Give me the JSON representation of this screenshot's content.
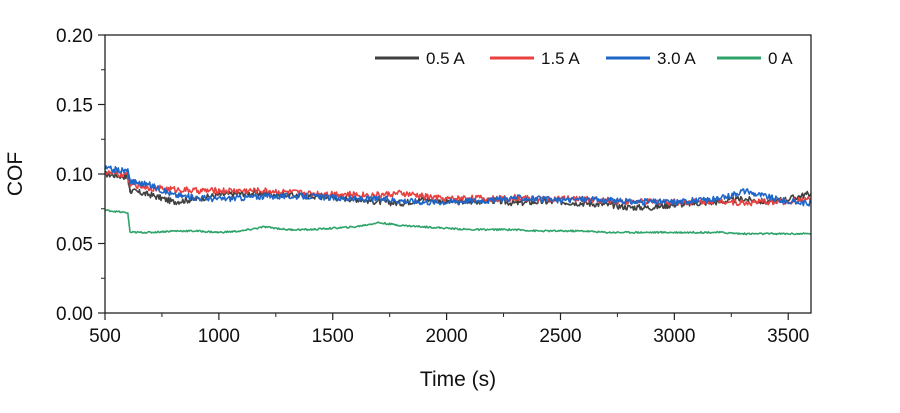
{
  "chart_data": {
    "type": "line",
    "xlabel": "Time (s)",
    "ylabel": "COF",
    "xlim": [
      500,
      3600
    ],
    "ylim": [
      0.0,
      0.2
    ],
    "x_ticks": [
      500,
      1000,
      1500,
      2000,
      2500,
      3000,
      3500
    ],
    "y_ticks": [
      0.0,
      0.05,
      0.1,
      0.15,
      0.2
    ],
    "y_tick_labels": [
      "0.00",
      "0.05",
      "0.10",
      "0.15",
      "0.20"
    ],
    "grid": false,
    "legend_position": "top-right",
    "series": [
      {
        "name": "0.5 A",
        "color": "#404040",
        "x": [
          500,
          600,
          610,
          700,
          800,
          900,
          1000,
          1100,
          1200,
          1300,
          1400,
          1500,
          1600,
          1700,
          1800,
          1900,
          2000,
          2100,
          2200,
          2300,
          2400,
          2500,
          2600,
          2700,
          2800,
          2900,
          3000,
          3100,
          3200,
          3300,
          3400,
          3500,
          3600
        ],
        "y": [
          0.1,
          0.098,
          0.088,
          0.085,
          0.08,
          0.082,
          0.085,
          0.086,
          0.086,
          0.085,
          0.084,
          0.083,
          0.082,
          0.08,
          0.079,
          0.082,
          0.08,
          0.08,
          0.081,
          0.079,
          0.08,
          0.08,
          0.079,
          0.078,
          0.076,
          0.076,
          0.078,
          0.079,
          0.08,
          0.082,
          0.08,
          0.082,
          0.086
        ]
      },
      {
        "name": "1.5 A",
        "color": "#e8413f",
        "x": [
          500,
          600,
          610,
          700,
          800,
          900,
          1000,
          1100,
          1200,
          1300,
          1400,
          1500,
          1600,
          1700,
          1800,
          1900,
          2000,
          2100,
          2200,
          2300,
          2400,
          2500,
          2600,
          2700,
          2800,
          2900,
          3000,
          3100,
          3200,
          3300,
          3400,
          3500,
          3600
        ],
        "y": [
          0.101,
          0.099,
          0.093,
          0.09,
          0.089,
          0.088,
          0.088,
          0.088,
          0.088,
          0.087,
          0.086,
          0.086,
          0.085,
          0.085,
          0.086,
          0.084,
          0.082,
          0.083,
          0.082,
          0.083,
          0.082,
          0.082,
          0.082,
          0.081,
          0.08,
          0.08,
          0.08,
          0.08,
          0.081,
          0.079,
          0.08,
          0.08,
          0.082
        ]
      },
      {
        "name": "3.0 A",
        "color": "#1f66c9",
        "x": [
          500,
          600,
          610,
          700,
          800,
          900,
          1000,
          1100,
          1200,
          1300,
          1400,
          1500,
          1600,
          1700,
          1800,
          1900,
          2000,
          2100,
          2200,
          2300,
          2400,
          2500,
          2600,
          2700,
          2800,
          2900,
          3000,
          3100,
          3200,
          3300,
          3400,
          3500,
          3600
        ],
        "y": [
          0.104,
          0.102,
          0.095,
          0.092,
          0.085,
          0.083,
          0.082,
          0.083,
          0.084,
          0.084,
          0.084,
          0.083,
          0.082,
          0.082,
          0.081,
          0.08,
          0.08,
          0.081,
          0.081,
          0.083,
          0.082,
          0.081,
          0.082,
          0.081,
          0.08,
          0.08,
          0.08,
          0.081,
          0.082,
          0.088,
          0.084,
          0.08,
          0.079
        ]
      },
      {
        "name": "0 A",
        "color": "#2fa46a",
        "x": [
          500,
          600,
          610,
          700,
          800,
          900,
          1000,
          1100,
          1200,
          1300,
          1400,
          1500,
          1600,
          1700,
          1800,
          1900,
          2000,
          2100,
          2200,
          2300,
          2400,
          2500,
          2600,
          2700,
          2800,
          2900,
          3000,
          3100,
          3200,
          3300,
          3400,
          3500,
          3600
        ],
        "y": [
          0.074,
          0.072,
          0.058,
          0.058,
          0.059,
          0.059,
          0.058,
          0.059,
          0.062,
          0.06,
          0.06,
          0.061,
          0.062,
          0.065,
          0.063,
          0.062,
          0.061,
          0.06,
          0.06,
          0.06,
          0.059,
          0.059,
          0.059,
          0.058,
          0.058,
          0.058,
          0.058,
          0.058,
          0.058,
          0.057,
          0.057,
          0.057,
          0.057
        ]
      }
    ]
  }
}
